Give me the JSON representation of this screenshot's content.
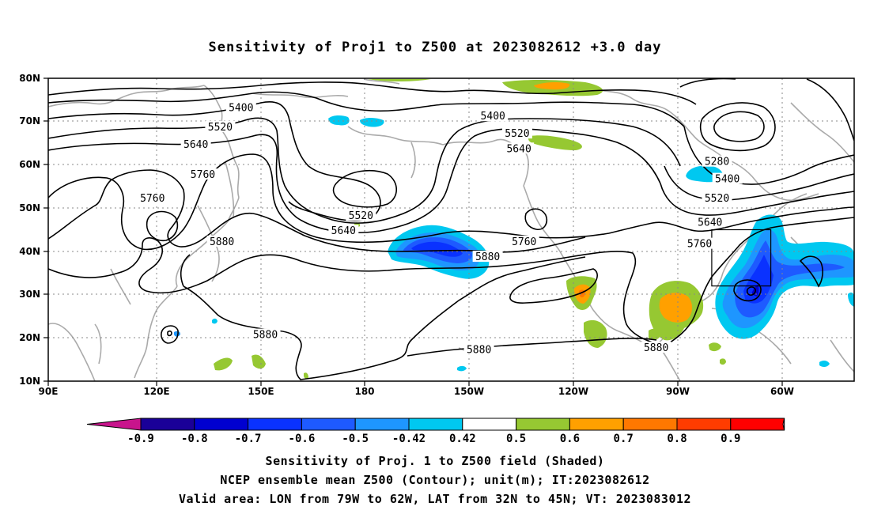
{
  "title": "Sensitivity of Proj1 to Z500 at 2023082612 +3.0 day",
  "map": {
    "lon_ticks": [
      "90E",
      "120E",
      "150E",
      "180",
      "150W",
      "120W",
      "90W",
      "60W"
    ],
    "lat_ticks": [
      "80N",
      "70N",
      "60N",
      "50N",
      "40N",
      "30N",
      "20N",
      "10N"
    ],
    "lon_range": [
      90,
      322
    ],
    "lat_range": [
      10,
      80
    ],
    "contour_labels": [
      {
        "text": "5400",
        "lon": 145.5,
        "lat": 73.0
      },
      {
        "text": "5520",
        "lon": 139.5,
        "lat": 68.5
      },
      {
        "text": "5640",
        "lon": 132.5,
        "lat": 64.5
      },
      {
        "text": "5760",
        "lon": 134.5,
        "lat": 57.5
      },
      {
        "text": "5760",
        "lon": 120.0,
        "lat": 52.0
      },
      {
        "text": "5880",
        "lon": 140.0,
        "lat": 42.0
      },
      {
        "text": "5880",
        "lon": 152.5,
        "lat": 20.5
      },
      {
        "text": "5520",
        "lon": 180.0,
        "lat": 48.0
      },
      {
        "text": "5640",
        "lon": 175.0,
        "lat": 44.5
      },
      {
        "text": "5400",
        "lon": 218.0,
        "lat": 71.0
      },
      {
        "text": "5520",
        "lon": 225.0,
        "lat": 67.0
      },
      {
        "text": "5640",
        "lon": 225.5,
        "lat": 63.5
      },
      {
        "text": "5760",
        "lon": 227.0,
        "lat": 42.0
      },
      {
        "text": "5880",
        "lon": 216.5,
        "lat": 38.5
      },
      {
        "text": "5880",
        "lon": 214.0,
        "lat": 17.0
      },
      {
        "text": "5880",
        "lon": 265.0,
        "lat": 17.5
      },
      {
        "text": "5280",
        "lon": 282.5,
        "lat": 60.5
      },
      {
        "text": "5400",
        "lon": 285.5,
        "lat": 56.5
      },
      {
        "text": "5520",
        "lon": 282.5,
        "lat": 52.0
      },
      {
        "text": "5640",
        "lon": 280.5,
        "lat": 46.5
      },
      {
        "text": "5760",
        "lon": 277.5,
        "lat": 41.5
      }
    ],
    "valid_box": {
      "lon_min": 281,
      "lon_max": 298,
      "lat_min": 32,
      "lat_max": 45
    }
  },
  "colorbar": {
    "labels": [
      "-0.9",
      "-0.8",
      "-0.7",
      "-0.6",
      "-0.5",
      "-0.42",
      "0.42",
      "0.5",
      "0.6",
      "0.7",
      "0.8",
      "0.9"
    ],
    "colors": [
      "#1a0098",
      "#0000d0",
      "#0a32ff",
      "#1e5aff",
      "#1e96ff",
      "#00c8f0",
      "#ffffff",
      "#96c832",
      "#ffa000",
      "#ff7800",
      "#ff3c00",
      "#ff0000"
    ],
    "low_end_color": "#c8148c",
    "high_end_color": "#ff9ec8"
  },
  "caption": {
    "line1": "Sensitivity of Proj. 1 to Z500 field (Shaded)",
    "line2": "NCEP ensemble mean Z500 (Contour); unit(m); IT:2023082612",
    "line3": "Valid area: LON from 79W to 62W, LAT from 32N to 45N; VT: 2023083012"
  }
}
